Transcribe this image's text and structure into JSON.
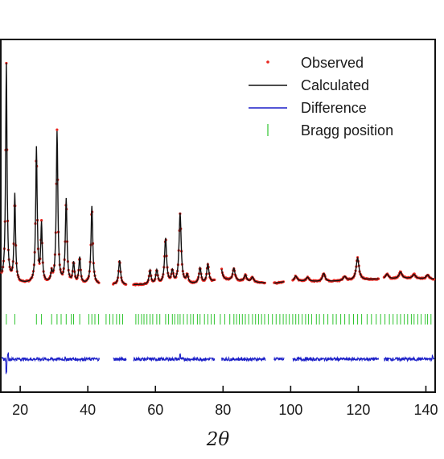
{
  "chart_data": {
    "type": "line",
    "xlabel": "2θ",
    "ylabel": "",
    "xlim": [
      14.5,
      142.5
    ],
    "xticks": [
      20,
      40,
      60,
      80,
      100,
      120,
      140
    ],
    "grid": false,
    "legend_position": "top-right",
    "colors": {
      "observed": "#e8261f",
      "calculated": "#111111",
      "difference": "#1b1fc8",
      "bragg": "#2ec42e"
    },
    "legend": [
      {
        "key": "observed",
        "label": "Observed",
        "marker": "dot"
      },
      {
        "key": "calculated",
        "label": "Calculated",
        "marker": "line"
      },
      {
        "key": "difference",
        "label": "Difference",
        "marker": "line"
      },
      {
        "key": "bragg",
        "label": "Bragg position",
        "marker": "tick"
      }
    ],
    "gaps": [
      [
        43.5,
        47.5
      ],
      [
        51.5,
        53.5
      ],
      [
        77.5,
        79.5
      ],
      [
        92.5,
        95
      ],
      [
        98,
        100.5
      ],
      [
        126,
        127.5
      ]
    ],
    "background_points": [
      [
        14.5,
        1.0
      ],
      [
        20,
        0.5
      ],
      [
        30,
        0.4
      ],
      [
        50,
        0.3
      ],
      [
        60,
        0.3
      ],
      [
        75,
        0.4
      ],
      [
        80,
        0.9
      ],
      [
        90,
        0.6
      ],
      [
        95,
        0.5
      ],
      [
        100,
        0.8
      ],
      [
        110,
        0.7
      ],
      [
        125,
        1.0
      ],
      [
        135,
        1.1
      ],
      [
        142.5,
        1.0
      ]
    ],
    "peaks": [
      {
        "x": 15.9,
        "h": 26.6
      },
      {
        "x": 18.4,
        "h": 10.7
      },
      {
        "x": 24.8,
        "h": 16.6
      },
      {
        "x": 26.3,
        "h": 7.1
      },
      {
        "x": 29.3,
        "h": 1.2
      },
      {
        "x": 30.9,
        "h": 18.6
      },
      {
        "x": 33.6,
        "h": 10.3
      },
      {
        "x": 35.8,
        "h": 2.5
      },
      {
        "x": 37.6,
        "h": 3.2
      },
      {
        "x": 41.2,
        "h": 9.6
      },
      {
        "x": 49.4,
        "h": 3.0
      },
      {
        "x": 58.4,
        "h": 1.7
      },
      {
        "x": 60.4,
        "h": 1.7
      },
      {
        "x": 63.0,
        "h": 5.6
      },
      {
        "x": 65.0,
        "h": 1.5
      },
      {
        "x": 67.3,
        "h": 8.7
      },
      {
        "x": 69.4,
        "h": 1.0
      },
      {
        "x": 73.2,
        "h": 1.9
      },
      {
        "x": 75.5,
        "h": 2.3
      },
      {
        "x": 79.2,
        "h": 2.6
      },
      {
        "x": 83.2,
        "h": 1.5
      },
      {
        "x": 86.6,
        "h": 0.8
      },
      {
        "x": 88.7,
        "h": 0.6
      },
      {
        "x": 101.5,
        "h": 0.6
      },
      {
        "x": 105.0,
        "h": 0.5
      },
      {
        "x": 109.8,
        "h": 1.0
      },
      {
        "x": 116.0,
        "h": 0.5
      },
      {
        "x": 119.8,
        "h": 2.7
      },
      {
        "x": 128.5,
        "h": 0.6
      },
      {
        "x": 132.5,
        "h": 0.8
      },
      {
        "x": 136.5,
        "h": 0.5
      },
      {
        "x": 140.5,
        "h": 0.5
      }
    ],
    "bragg_positions": [
      15.9,
      18.4,
      24.8,
      26.3,
      29.3,
      30.9,
      32.1,
      33.6,
      35.1,
      35.8,
      37.6,
      40.3,
      41.2,
      42.1,
      43.2,
      45.4,
      46.5,
      47.4,
      48.5,
      49.4,
      50.3,
      54.2,
      55.0,
      55.9,
      56.6,
      57.5,
      58.4,
      59.2,
      60.4,
      61.3,
      63.0,
      63.9,
      65.0,
      65.7,
      66.6,
      67.3,
      68.3,
      69.4,
      70.4,
      71.2,
      72.4,
      73.2,
      74.5,
      75.5,
      76.5,
      77.4,
      79.2,
      80.5,
      82.0,
      83.2,
      84.0,
      84.8,
      85.7,
      86.6,
      87.6,
      88.7,
      89.6,
      90.5,
      91.4,
      92.3,
      93.4,
      94.6,
      95.7,
      96.8,
      97.8,
      98.7,
      99.6,
      100.6,
      101.5,
      102.4,
      103.4,
      104.4,
      105.3,
      106.2,
      107.6,
      108.5,
      109.8,
      111.0,
      112.5,
      113.5,
      114.8,
      116.0,
      117.3,
      118.6,
      119.8,
      121.0,
      122.6,
      123.9,
      125.3,
      126.6,
      127.9,
      129.2,
      130.3,
      131.5,
      132.5,
      133.6,
      134.6,
      135.7,
      136.5,
      137.6,
      138.6,
      139.8,
      140.5,
      141.5
    ],
    "difference_spikes": [
      {
        "x": 15.9,
        "d": -1.4
      },
      {
        "x": 16.4,
        "d": 0.6
      },
      {
        "x": 67.3,
        "d": 0.5
      },
      {
        "x": 142.0,
        "d": 0.4
      }
    ]
  }
}
